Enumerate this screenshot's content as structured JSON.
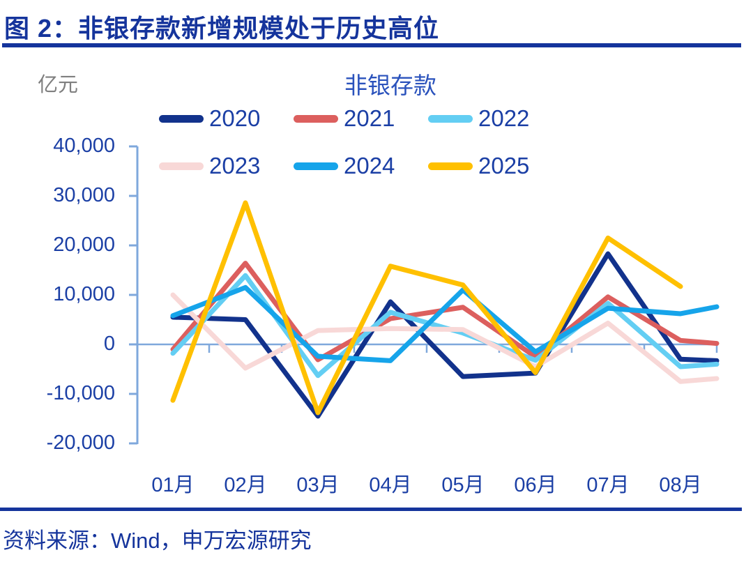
{
  "header": {
    "title": "图 2：非银存款新增规模处于历史高位"
  },
  "chart": {
    "title": "非银存款",
    "unit_label": "亿元",
    "colors": {
      "axis": "#7FA8DC",
      "text": "#1B3FA5",
      "title_text": "#2A52BC",
      "unit_text": "#7F7F7F",
      "rule": "#15349C"
    }
  },
  "chart_data": {
    "type": "line",
    "title": "非银存款",
    "ylabel": "亿元",
    "categories": [
      "01月",
      "02月",
      "03月",
      "04月",
      "05月",
      "06月",
      "07月",
      "08月"
    ],
    "ylim": [
      -20000,
      40000
    ],
    "grid": "zero-line-only",
    "legend_position": "top",
    "y_ticks": [
      {
        "label": "40,000",
        "value": 40000
      },
      {
        "label": "30,000",
        "value": 30000
      },
      {
        "label": "20,000",
        "value": 20000
      },
      {
        "label": "10,000",
        "value": 10000
      },
      {
        "label": "0",
        "value": 0
      },
      {
        "label": "-10,000",
        "value": -10000
      },
      {
        "label": "-20,000",
        "value": -20000
      }
    ],
    "series": [
      {
        "name": "2020",
        "color": "#12328C",
        "values": [
          5500,
          5000,
          -14500,
          8600,
          -6500,
          -5800,
          18300,
          -3000
        ],
        "edge_value": -3300
      },
      {
        "name": "2021",
        "color": "#DC5F5E",
        "values": [
          -1000,
          16400,
          -3100,
          5200,
          7500,
          -2500,
          9600,
          800
        ],
        "edge_value": 200
      },
      {
        "name": "2022",
        "color": "#63CEF3",
        "values": [
          -1800,
          13900,
          -6300,
          6500,
          2300,
          -3200,
          8300,
          -4500
        ],
        "edge_value": -4000
      },
      {
        "name": "2023",
        "color": "#F8D8D7",
        "values": [
          10000,
          -4800,
          2800,
          3200,
          3000,
          -4500,
          4300,
          -7500
        ],
        "edge_value": -6900
      },
      {
        "name": "2024",
        "color": "#16A4EA",
        "values": [
          5800,
          11500,
          -2400,
          -3300,
          11000,
          -1500,
          7300,
          6200
        ],
        "edge_value": 7600
      },
      {
        "name": "2025",
        "color": "#FFC000",
        "values": [
          -11300,
          28600,
          -13800,
          15800,
          12000,
          -5700,
          21500,
          11700
        ],
        "edge_value": null
      }
    ]
  },
  "footer": {
    "source": "资料来源：Wind，申万宏源研究"
  }
}
